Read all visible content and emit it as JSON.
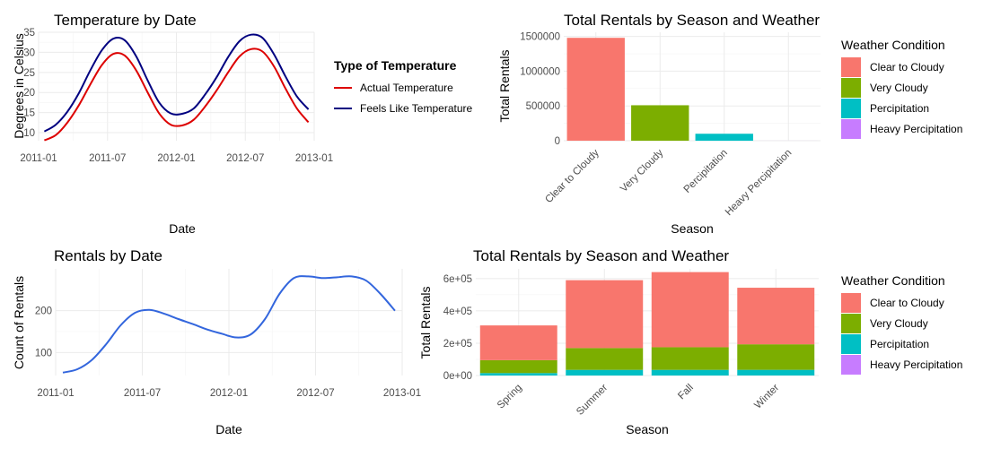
{
  "chart_data": [
    {
      "type": "line",
      "title": "Temperature by Date",
      "xlabel": "Date",
      "ylabel": "Degrees in Celsius",
      "x_ticks": [
        "2011-01",
        "2011-07",
        "2012-01",
        "2012-07",
        "2013-01"
      ],
      "y_ticks": [
        "10",
        "15",
        "20",
        "25",
        "30",
        "35"
      ],
      "ylim": [
        8,
        35
      ],
      "legend_title": "Type of Temperature",
      "legend_position": "right",
      "series": [
        {
          "name": "Actual Temperature",
          "color": "#dd0000",
          "x": [
            "2011-01",
            "2011-02",
            "2011-03",
            "2011-04",
            "2011-05",
            "2011-06",
            "2011-07",
            "2011-08",
            "2011-09",
            "2011-10",
            "2011-11",
            "2011-12",
            "2012-01",
            "2012-02",
            "2012-03",
            "2012-04",
            "2012-05",
            "2012-06",
            "2012-07",
            "2012-08",
            "2012-09",
            "2012-10",
            "2012-11",
            "2012-12"
          ],
          "y": [
            8.1,
            9.4,
            12.5,
            16.8,
            22.0,
            26.8,
            29.6,
            29.2,
            25.5,
            20.0,
            14.8,
            12.0,
            11.8,
            13.2,
            16.5,
            20.5,
            25.0,
            29.0,
            30.8,
            30.2,
            26.5,
            21.0,
            16.0,
            12.6
          ]
        },
        {
          "name": "Feels Like Temperature",
          "color": "#000080",
          "x": [
            "2011-01",
            "2011-02",
            "2011-03",
            "2011-04",
            "2011-05",
            "2011-06",
            "2011-07",
            "2011-08",
            "2011-09",
            "2011-10",
            "2011-11",
            "2011-12",
            "2012-01",
            "2012-02",
            "2012-03",
            "2012-04",
            "2012-05",
            "2012-06",
            "2012-07",
            "2012-08",
            "2012-09",
            "2012-10",
            "2012-11",
            "2012-12"
          ],
          "y": [
            10.3,
            12.0,
            15.2,
            19.8,
            25.5,
            30.5,
            33.4,
            33.0,
            29.0,
            23.0,
            17.5,
            14.8,
            14.7,
            16.0,
            19.5,
            23.8,
            28.8,
            32.8,
            34.4,
            33.6,
            29.5,
            24.0,
            19.0,
            15.8
          ]
        }
      ]
    },
    {
      "type": "bar",
      "title": "Total Rentals by Season and Weather",
      "xlabel": "Season",
      "ylabel": "Total Rentals",
      "categories": [
        "Clear to Cloudy",
        "Very Cloudy",
        "Percipitation",
        "Heavy Percipitation"
      ],
      "values": [
        1480000,
        510000,
        100000,
        300
      ],
      "colors": [
        "#f8766d",
        "#7cae00",
        "#00bfc4",
        "#c77cff"
      ],
      "y_ticks": [
        "0",
        "500000",
        "1000000",
        "1500000"
      ],
      "y_tick_values": [
        0,
        500000,
        1000000,
        1500000
      ],
      "ylim": [
        0,
        1560000
      ],
      "legend_title": "Weather Condition",
      "legend_position": "right",
      "legend": [
        "Clear to Cloudy",
        "Very Cloudy",
        "Percipitation",
        "Heavy Percipitation"
      ]
    },
    {
      "type": "line",
      "title": "Rentals by Date",
      "xlabel": "Date",
      "ylabel": "Count of Rentals",
      "x_ticks": [
        "2011-01",
        "2011-07",
        "2012-01",
        "2012-07",
        "2013-01"
      ],
      "y_ticks": [
        "100",
        "200"
      ],
      "ylim": [
        45,
        300
      ],
      "series": [
        {
          "name": "",
          "color": "#3366dd",
          "x": [
            "2011-01",
            "2011-02",
            "2011-03",
            "2011-04",
            "2011-05",
            "2011-06",
            "2011-07",
            "2011-08",
            "2011-09",
            "2011-10",
            "2011-11",
            "2011-12",
            "2012-01",
            "2012-02",
            "2012-03",
            "2012-04",
            "2012-05",
            "2012-06",
            "2012-07",
            "2012-08",
            "2012-09",
            "2012-10",
            "2012-11",
            "2012-12"
          ],
          "y": [
            52,
            60,
            82,
            120,
            165,
            195,
            202,
            193,
            180,
            168,
            155,
            145,
            136,
            143,
            180,
            240,
            278,
            282,
            278,
            280,
            282,
            272,
            240,
            200
          ]
        }
      ]
    },
    {
      "type": "bar",
      "title": "Total Rentals by Season and Weather",
      "xlabel": "Season",
      "ylabel": "Total Rentals",
      "categories": [
        "Spring",
        "Summer",
        "Fall",
        "Winter"
      ],
      "stacked": true,
      "series": [
        {
          "name": "Heavy Percipitation",
          "color": "#c77cff",
          "values": [
            0,
            0,
            0,
            200
          ]
        },
        {
          "name": "Percipitation",
          "color": "#00bfc4",
          "values": [
            15000,
            35000,
            35000,
            35000
          ]
        },
        {
          "name": "Very Cloudy",
          "color": "#7cae00",
          "values": [
            80000,
            135000,
            140000,
            158000
          ]
        },
        {
          "name": "Clear to Cloudy",
          "color": "#f8766d",
          "values": [
            215000,
            420000,
            465000,
            350000
          ]
        }
      ],
      "y_ticks": [
        "0e+00",
        "2e+05",
        "4e+05",
        "6e+05"
      ],
      "y_tick_values": [
        0,
        200000,
        400000,
        600000
      ],
      "ylim": [
        0,
        660000
      ],
      "legend_title": "Weather Condition",
      "legend_position": "right",
      "legend": [
        "Clear to Cloudy",
        "Very Cloudy",
        "Percipitation",
        "Heavy Percipitation"
      ]
    }
  ]
}
